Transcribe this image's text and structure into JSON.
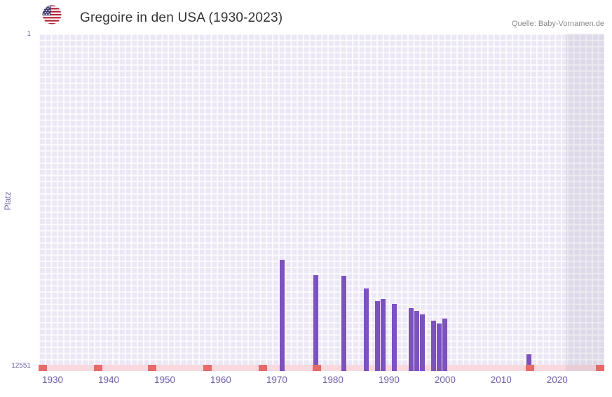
{
  "header": {
    "title": "Gregoire in den USA (1930-2023)",
    "source": "Quelle: Baby-Vornamen.de",
    "flag_icon": "usa-flag-icon"
  },
  "chart_data": {
    "type": "bar",
    "title": "Gregoire in den USA (1930-2023)",
    "xlabel": "",
    "ylabel": "Platz",
    "y_axis": {
      "top_label": "1",
      "bottom_label": "12551",
      "min": 1,
      "max": 12551,
      "inverted": true
    },
    "x_range": [
      1927.5,
      2028.4
    ],
    "x_ticks": [
      1930,
      1940,
      1950,
      1960,
      1970,
      1980,
      1990,
      2000,
      2010,
      2020
    ],
    "bars": [
      {
        "year": 1971,
        "rank": 8400
      },
      {
        "year": 1977,
        "rank": 8980
      },
      {
        "year": 1982,
        "rank": 9010
      },
      {
        "year": 1986,
        "rank": 9480
      },
      {
        "year": 1988,
        "rank": 9950
      },
      {
        "year": 1989,
        "rank": 9880
      },
      {
        "year": 1991,
        "rank": 10050
      },
      {
        "year": 1994,
        "rank": 10210
      },
      {
        "year": 1995,
        "rank": 10310
      },
      {
        "year": 1996,
        "rank": 10440
      },
      {
        "year": 1998,
        "rank": 10680
      },
      {
        "year": 1999,
        "rank": 10780
      },
      {
        "year": 2000,
        "rank": 10600
      },
      {
        "year": 2015,
        "rank": 11930
      }
    ],
    "grid": true,
    "legend": false,
    "strip_marks_fractions": [
      0.002,
      0.105,
      0.201,
      0.299,
      0.396,
      0.492,
      0.868,
      0.994
    ],
    "right_band": {
      "start_fraction": 0.932
    },
    "colors": {
      "bar": "#7c52bd",
      "plot_bg": "#ece7f5",
      "grid_line": "rgba(255,255,255,0.8)",
      "tick_label": "#6f5fa8",
      "title_text": "#333333",
      "source_text": "#8a8a8a",
      "strip_bg": "#f9d9de",
      "strip_mark": "#e66a6a",
      "band_overlay": "rgba(130,120,150,0.13)"
    }
  }
}
